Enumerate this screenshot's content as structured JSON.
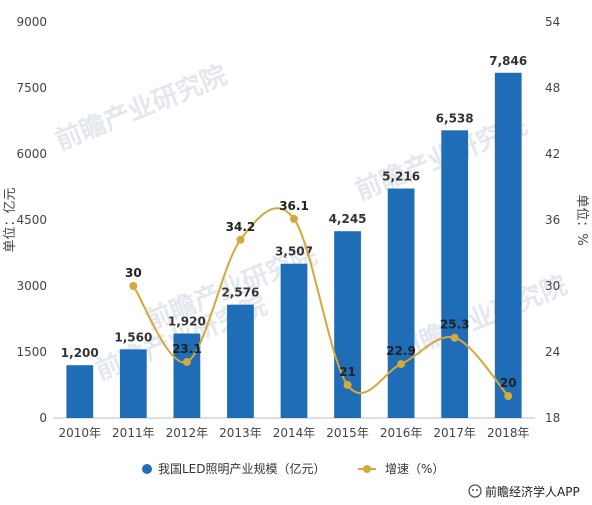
{
  "chart_data": {
    "type": "bar",
    "categories": [
      "2010年",
      "2011年",
      "2012年",
      "2013年",
      "2014年",
      "2015年",
      "2016年",
      "2017年",
      "2018年"
    ],
    "series": [
      {
        "name": "我国LED照明产业规模（亿元）",
        "type": "bar",
        "axis": "left",
        "color": "#1f6db6",
        "values": [
          1200,
          1560,
          1920,
          2576,
          3507,
          4245,
          5216,
          6538,
          7846
        ],
        "labels": [
          "1,200",
          "1,560",
          "1,920",
          "2,576",
          "3,507",
          "4,245",
          "5,216",
          "6,538",
          "7,846"
        ]
      },
      {
        "name": "增速（%）",
        "type": "line",
        "smooth": true,
        "axis": "right",
        "color": "#d4a93a",
        "values": [
          null,
          30,
          23.1,
          34.2,
          36.1,
          21,
          22.9,
          25.3,
          20
        ],
        "labels": [
          "",
          "30",
          "23.1",
          "34.2",
          "36.1",
          "21",
          "22.9",
          "25.3",
          "20"
        ]
      }
    ],
    "ylabel": "单位：亿元",
    "y2label": "单位：%",
    "ylim": [
      0,
      9000
    ],
    "y2lim": [
      18,
      54
    ],
    "yticks": [
      "0",
      "1500",
      "3000",
      "4500",
      "6000",
      "7500",
      "9000"
    ],
    "y2ticks": [
      "18",
      "24",
      "30",
      "36",
      "42",
      "48",
      "54"
    ],
    "grid": false,
    "legend_position": "bottom"
  },
  "watermark_text": "前瞻产业研究院",
  "credit": {
    "icon": "wechat-icon",
    "text": "前瞻经济学人APP"
  }
}
